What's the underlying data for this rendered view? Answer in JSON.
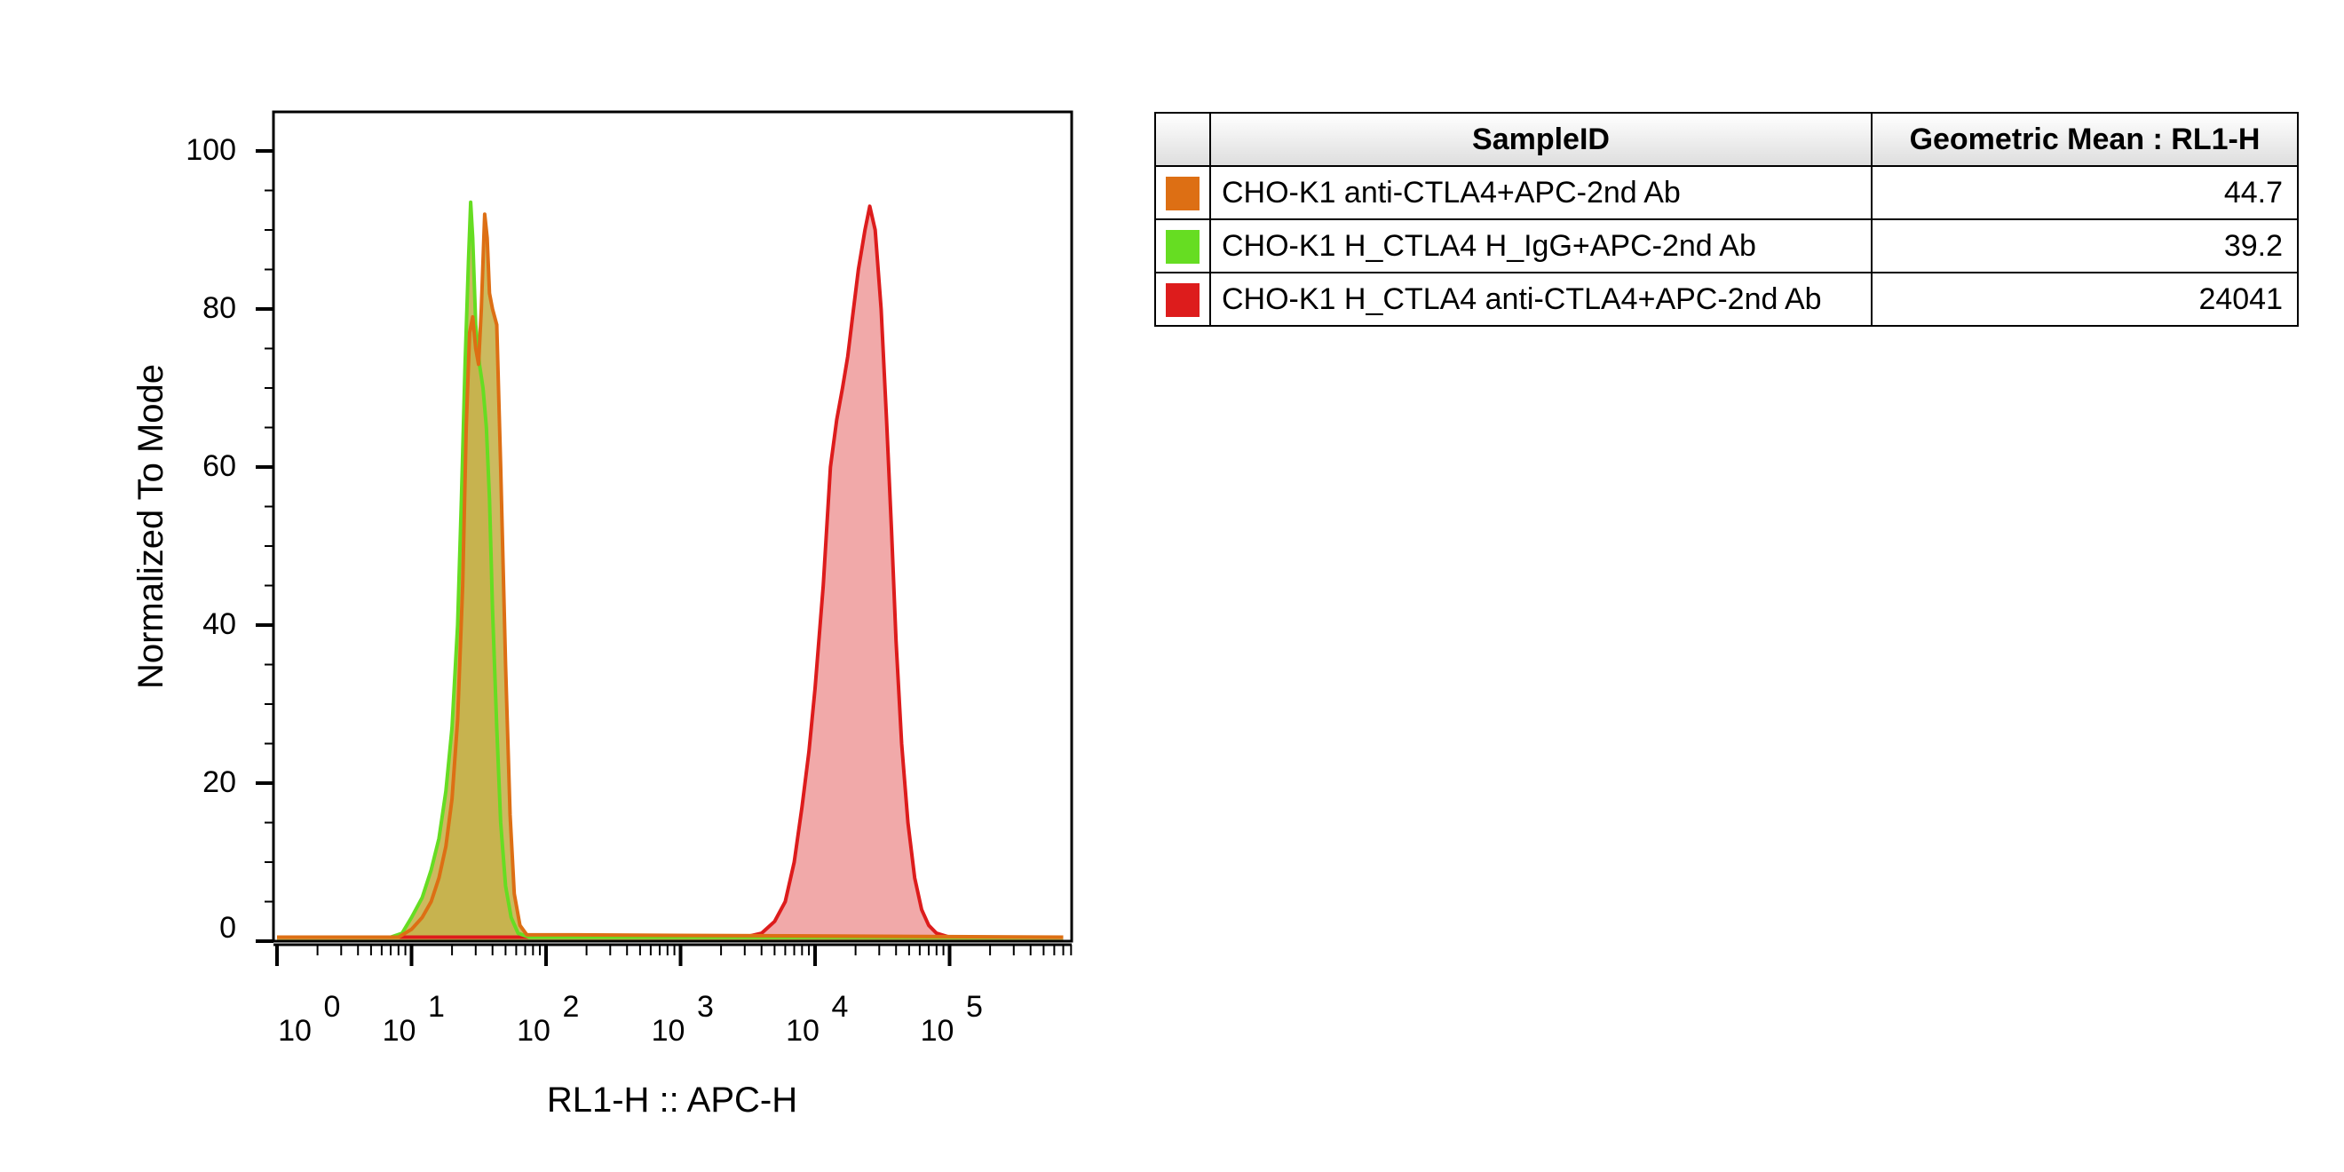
{
  "chart_data": {
    "type": "area",
    "xlabel": "RL1-H :: APC-H",
    "ylabel": "Normalized To Mode",
    "xscale": "log",
    "ylim": [
      0,
      100
    ],
    "yticks": [
      "0",
      "20",
      "40",
      "60",
      "80",
      "100"
    ],
    "xticks": [
      {
        "base": "10",
        "exp": "0"
      },
      {
        "base": "10",
        "exp": "1"
      },
      {
        "base": "10",
        "exp": "2"
      },
      {
        "base": "10",
        "exp": "3"
      },
      {
        "base": "10",
        "exp": "4"
      },
      {
        "base": "10",
        "exp": "5"
      }
    ],
    "series": [
      {
        "name": "CHO-K1 H_CTLA4 anti-CTLA4+APC-2nd Ab",
        "stroke": "#dd1c1c",
        "fill": "#f0a0a0",
        "points": [
          [
            1,
            0.5
          ],
          [
            3000,
            0.5
          ],
          [
            4000,
            1
          ],
          [
            5000,
            2.5
          ],
          [
            6000,
            5
          ],
          [
            7000,
            10
          ],
          [
            8000,
            17
          ],
          [
            9000,
            24
          ],
          [
            10000,
            32
          ],
          [
            11500,
            45
          ],
          [
            13000,
            60
          ],
          [
            14500,
            66
          ],
          [
            16000,
            70
          ],
          [
            17500,
            74
          ],
          [
            19000,
            79
          ],
          [
            21000,
            85
          ],
          [
            23500,
            90
          ],
          [
            25500,
            93
          ],
          [
            28000,
            90
          ],
          [
            31000,
            80
          ],
          [
            34000,
            66
          ],
          [
            37000,
            52
          ],
          [
            40000,
            38
          ],
          [
            44000,
            25
          ],
          [
            49000,
            15
          ],
          [
            55000,
            8
          ],
          [
            62000,
            4
          ],
          [
            70000,
            2
          ],
          [
            80000,
            1
          ],
          [
            100000,
            0.5
          ],
          [
            700000,
            0.5
          ]
        ]
      },
      {
        "name": "CHO-K1 H_CTLA4 H_IgG+APC-2nd Ab",
        "stroke": "#66dd22",
        "fill": "#c6b24e",
        "points": [
          [
            1,
            0.5
          ],
          [
            7,
            0.5
          ],
          [
            8.5,
            1
          ],
          [
            10,
            3
          ],
          [
            12,
            5.5
          ],
          [
            14,
            9
          ],
          [
            16,
            13
          ],
          [
            18,
            19
          ],
          [
            20,
            27
          ],
          [
            22,
            40
          ],
          [
            23.5,
            56
          ],
          [
            25,
            73
          ],
          [
            26.5,
            86
          ],
          [
            27.5,
            93.5
          ],
          [
            28.5,
            89
          ],
          [
            30,
            78
          ],
          [
            32,
            73
          ],
          [
            34,
            70
          ],
          [
            36,
            65
          ],
          [
            38,
            56
          ],
          [
            40,
            42
          ],
          [
            43,
            27
          ],
          [
            46,
            15
          ],
          [
            50,
            7
          ],
          [
            55,
            3
          ],
          [
            62,
            1
          ],
          [
            75,
            0.5
          ],
          [
            700000,
            0.5
          ]
        ]
      },
      {
        "name": "CHO-K1 anti-CTLA4+APC-2nd Ab",
        "stroke": "#dd6f14",
        "fill": "#c6b24e",
        "points": [
          [
            1,
            0.5
          ],
          [
            8,
            0.5
          ],
          [
            10,
            1.5
          ],
          [
            12,
            3
          ],
          [
            14,
            5
          ],
          [
            16,
            8
          ],
          [
            18,
            12
          ],
          [
            20,
            18
          ],
          [
            22,
            28
          ],
          [
            24,
            45
          ],
          [
            25.5,
            65
          ],
          [
            27,
            77
          ],
          [
            28.5,
            79
          ],
          [
            30,
            75
          ],
          [
            31.5,
            73
          ],
          [
            33,
            80
          ],
          [
            35,
            92
          ],
          [
            36.5,
            89
          ],
          [
            38,
            82
          ],
          [
            40,
            80
          ],
          [
            43,
            78
          ],
          [
            46,
            60
          ],
          [
            50,
            35
          ],
          [
            54,
            16
          ],
          [
            58,
            6
          ],
          [
            64,
            2
          ],
          [
            72,
            0.8
          ],
          [
            100,
            0.8
          ],
          [
            160,
            0.8
          ],
          [
            700000,
            0.5
          ]
        ]
      }
    ],
    "table": {
      "headers": [
        "SampleID",
        "Geometric Mean : RL1-H"
      ],
      "rows": [
        {
          "color": "#dd6f14",
          "sample": "CHO-K1 anti-CTLA4+APC-2nd Ab",
          "value": "44.7"
        },
        {
          "color": "#66dd22",
          "sample": "CHO-K1 H_CTLA4 H_IgG+APC-2nd Ab",
          "value": "39.2"
        },
        {
          "color": "#dd1c1c",
          "sample": "CHO-K1 H_CTLA4 anti-CTLA4+APC-2nd Ab",
          "value": "24041"
        }
      ]
    }
  }
}
